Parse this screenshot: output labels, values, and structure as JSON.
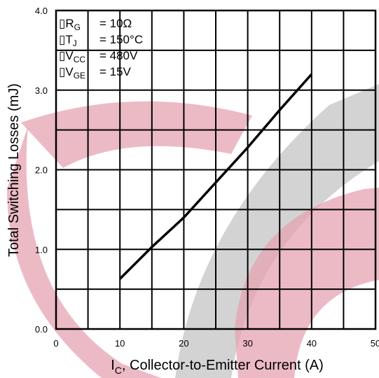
{
  "chart_data": {
    "type": "line",
    "title": "",
    "xlabel_main": "I",
    "xlabel_sub": "C",
    "xlabel_rest": ", Collector-to-Emitter Current (A)",
    "ylabel": "Total Switching Losses (mJ)",
    "xlim": [
      0,
      50
    ],
    "ylim": [
      0.0,
      4.0
    ],
    "x_ticks": [
      0,
      10,
      20,
      30,
      40,
      50
    ],
    "x_tick_labels": [
      "0",
      "10",
      "20",
      "30",
      "40",
      "50"
    ],
    "y_ticks": [
      0.0,
      1.0,
      2.0,
      3.0,
      4.0
    ],
    "y_tick_labels": [
      "0.0",
      "1.0",
      "2.0",
      "3.0",
      "4.0"
    ],
    "grid": true,
    "series": [
      {
        "x": [
          10,
          15,
          20,
          25,
          30,
          35,
          40
        ],
        "y": [
          0.63,
          1.03,
          1.4,
          1.84,
          2.28,
          2.75,
          3.2
        ]
      }
    ],
    "conditions": [
      {
        "marker": "▯",
        "name": "R",
        "sub": "G",
        "value": "= 10Ω"
      },
      {
        "marker": "▯",
        "name": "T",
        "sub": "J",
        "value": "= 150°C"
      },
      {
        "marker": "▯",
        "name": "V",
        "sub": "CC",
        "value": "= 480V"
      },
      {
        "marker": "▯",
        "name": "V",
        "sub": "GE",
        "value": "= 15V"
      }
    ],
    "colors": {
      "grid": "#000000",
      "line": "#000000",
      "watermark_red": "#d9899a",
      "watermark_gray": "#b3b3b3"
    }
  }
}
